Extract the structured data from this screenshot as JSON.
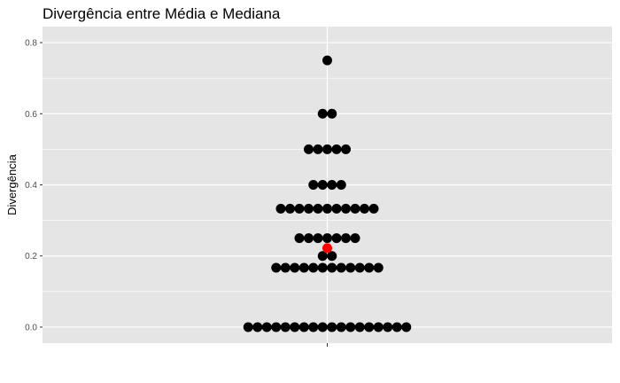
{
  "chart_data": {
    "type": "scatter",
    "title": "Divergência entre Média e Mediana",
    "xlabel": "",
    "ylabel": "Divergência",
    "ylim": [
      -0.045,
      0.845
    ],
    "yticks": [
      "0.0",
      "0.2",
      "0.4",
      "0.6",
      "0.8"
    ],
    "ytick_values": [
      0.0,
      0.2,
      0.4,
      0.6,
      0.8
    ],
    "grid": true,
    "legend": "none",
    "style": "dotplot",
    "point_color": "#000000",
    "highlight_color": "#ff0000",
    "background_color": "#e5e5e5",
    "grid_color": "#ffffff",
    "series": [
      {
        "points": [
          {
            "y": 0.75,
            "count": 1
          },
          {
            "y": 0.6,
            "count": 2
          },
          {
            "y": 0.5,
            "count": 5
          },
          {
            "y": 0.4,
            "count": 4
          },
          {
            "y": 0.333,
            "count": 11
          },
          {
            "y": 0.25,
            "count": 7
          },
          {
            "y": 0.2,
            "count": 2
          },
          {
            "y": 0.167,
            "count": 12
          },
          {
            "y": 0.0,
            "count": 18
          }
        ]
      }
    ],
    "highlight_points": [
      {
        "y": 0.222
      }
    ]
  }
}
